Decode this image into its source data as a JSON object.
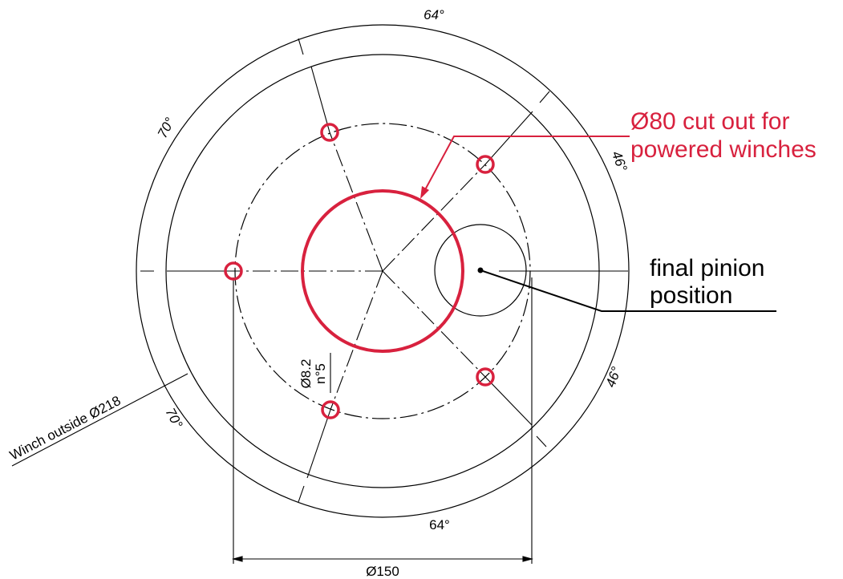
{
  "colors": {
    "ink": "#000000",
    "accent": "#d8213e",
    "background": "#ffffff"
  },
  "angles": {
    "top": "64°",
    "bottom": "64°",
    "upper_left": "70°",
    "lower_left": "70°",
    "upper_right": "46°",
    "lower_right": "46°"
  },
  "cutout_note": {
    "line1": "Ø80 cut out for",
    "line2": "powered winches"
  },
  "pinion_note": {
    "line1": "final pinion",
    "line2": "position"
  },
  "hole_note": {
    "diameter": "Ø8.2",
    "count": "n°5"
  },
  "winch_note": "Winch outside Ø218",
  "dimension_note": "Ø150"
}
